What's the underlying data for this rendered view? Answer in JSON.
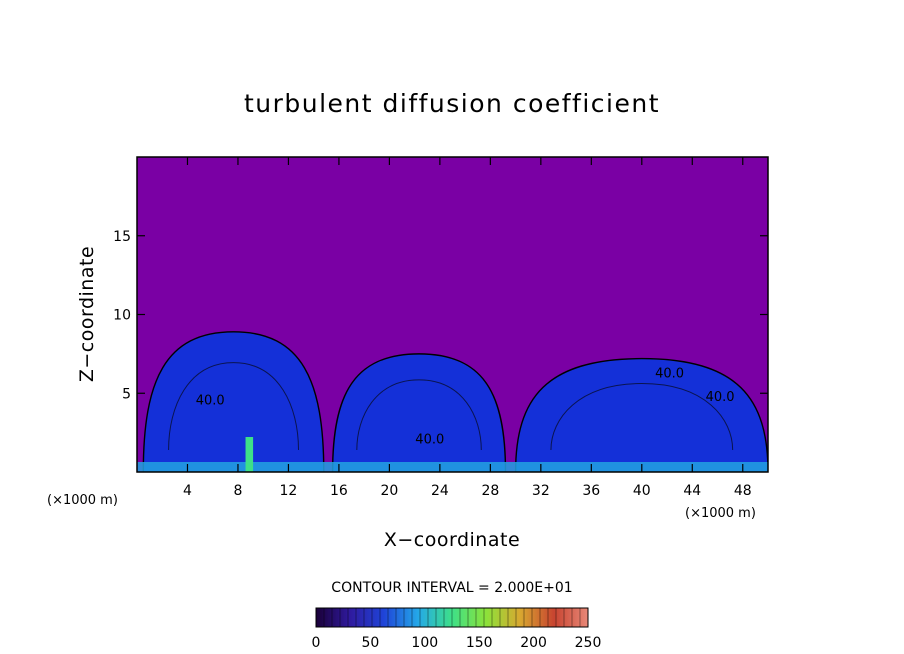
{
  "chart_data": {
    "type": "heatmap",
    "title": "turbulent diffusion coefficient",
    "xlabel": "X−coordinate",
    "ylabel": "Z−coordinate",
    "x_unit": "(×1000 m)",
    "z_unit": "(×1000 m)",
    "xlim": [
      0,
      50
    ],
    "ylim": [
      0,
      20
    ],
    "x_ticks": [
      4,
      8,
      12,
      16,
      20,
      24,
      28,
      32,
      36,
      40,
      44,
      48
    ],
    "y_ticks": [
      5,
      10,
      15
    ],
    "contour_interval_text": "CONTOUR INTERVAL = 2.000E+01",
    "contour_interval": 20,
    "contour_labels": [
      {
        "text": "40.0",
        "x": 5.8,
        "z": 4.3
      },
      {
        "text": "40.0",
        "x": 23.2,
        "z": 1.8
      },
      {
        "text": "40.0",
        "x": 42.2,
        "z": 6.0
      },
      {
        "text": "40.0",
        "x": 46.2,
        "z": 4.5
      }
    ],
    "colorbar": {
      "min": 0,
      "max": 250,
      "ticks": [
        0,
        50,
        100,
        150,
        200,
        250
      ],
      "colors": [
        "#1a0038",
        "#2f1a9e",
        "#1f44d8",
        "#24a8e8",
        "#3ee088",
        "#8ce23a",
        "#d8a830",
        "#c84430",
        "#e88878"
      ]
    },
    "background_color": "#7a00a4",
    "field_color": "#1430d8",
    "bubbles": [
      {
        "x": [
          0.5,
          14.8
        ],
        "top": 8.9
      },
      {
        "x": [
          15.5,
          29.2
        ],
        "top": 7.5
      },
      {
        "x": [
          30.0,
          50.0
        ],
        "top": 7.2
      }
    ]
  }
}
